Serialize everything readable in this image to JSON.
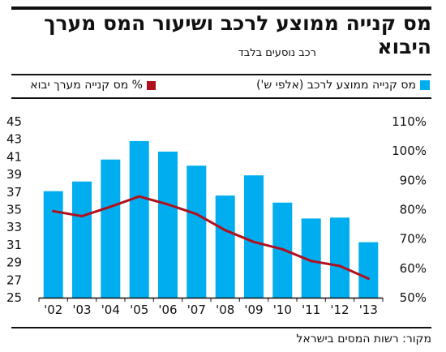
{
  "title": "מס קנייה ממוצע לרכב ושיעור המס מערך היבוא",
  "subtitle": "רכב נוסעים בלבד",
  "source": "מקור: רשות המסים בישראל",
  "colors": {
    "bars": "#00aeef",
    "line": "#b0101e",
    "axis": "#111111"
  },
  "chart_data": {
    "type": "bar",
    "categories": [
      "'02",
      "'03",
      "'04",
      "'05",
      "'06",
      "'07",
      "'08",
      "'09",
      "'10",
      "'11",
      "'12",
      "'13"
    ],
    "series": [
      {
        "name": "מס קנייה ממוצע לרכב (אלפי ש')",
        "type": "bar",
        "axis": "left",
        "values": [
          37.1,
          38.2,
          40.7,
          42.8,
          41.6,
          40.0,
          36.6,
          38.9,
          35.8,
          34.0,
          34.1,
          31.3
        ]
      },
      {
        "name": "% מס קנייה מערך יבוא",
        "type": "line",
        "axis": "right",
        "values": [
          79.5,
          77.8,
          81.0,
          84.5,
          81.8,
          78.5,
          73.0,
          69.0,
          66.5,
          62.5,
          60.8,
          56.5
        ]
      }
    ],
    "y_left": {
      "ylim": [
        25,
        45
      ],
      "ticks": [
        25,
        27,
        29,
        31,
        33,
        35,
        37,
        39,
        41,
        43,
        45
      ]
    },
    "y_right": {
      "ylim": [
        50,
        110
      ],
      "ticks": [
        "50%",
        "60%",
        "70%",
        "80%",
        "90%",
        "100%",
        "110%"
      ]
    },
    "legend_position": "top",
    "grid": false
  }
}
